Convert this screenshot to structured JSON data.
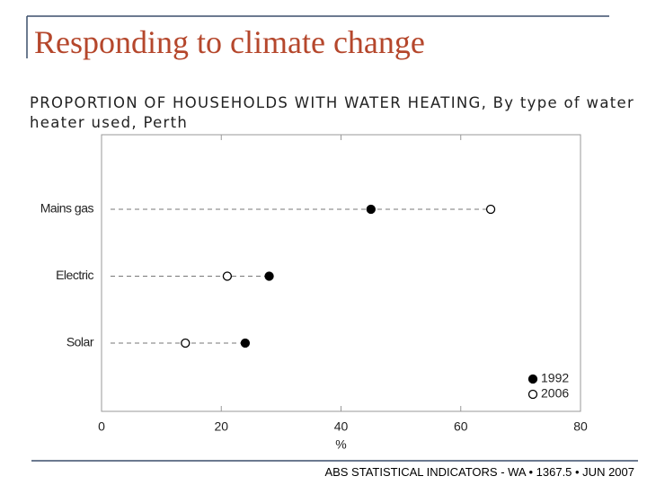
{
  "slide_title": "Responding to climate change",
  "footer": "ABS STATISTICAL INDICATORS - WA • 1367.5 • JUN 2007",
  "chart_data": {
    "type": "dot",
    "title": "PROPORTION OF HOUSEHOLDS WITH WATER HEATING, By type of water heater used, Perth",
    "categories": [
      "Mains gas",
      "Electric",
      "Solar"
    ],
    "series": [
      {
        "name": "1992",
        "color": "#000000",
        "values": [
          45,
          28,
          24
        ]
      },
      {
        "name": "2006",
        "color": "#ffffff",
        "values": [
          65,
          21,
          14
        ]
      }
    ],
    "xlim": [
      0,
      80
    ],
    "xticks": [
      0,
      20,
      40,
      60,
      80
    ],
    "xlabel": "%",
    "legend": "bottom-right"
  }
}
